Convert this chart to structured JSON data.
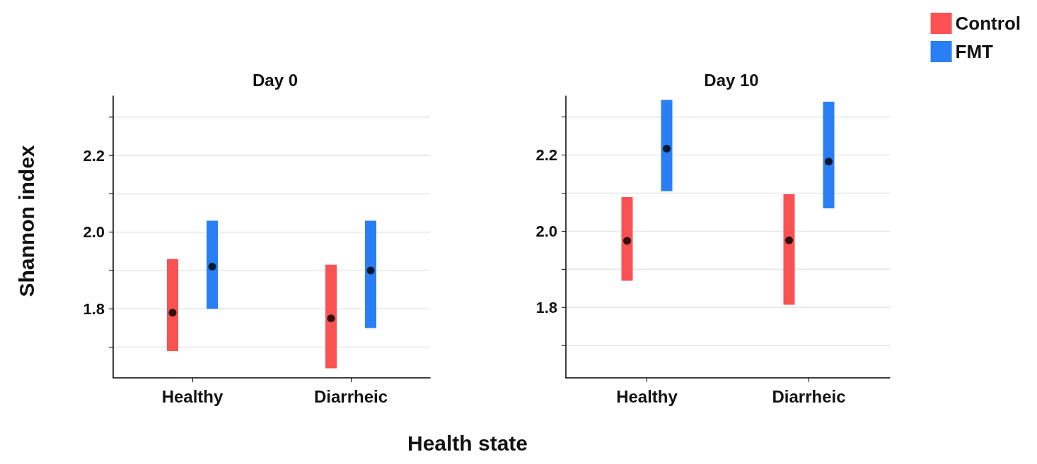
{
  "chart_data": [
    {
      "type": "bar",
      "title": "Day 0",
      "ylabel": "Shannon index",
      "xlabel": "Health state",
      "categories": [
        "Healthy",
        "Diarrheic"
      ],
      "ylim": [
        1.62,
        2.355
      ],
      "yticks": [
        {
          "value": 1.7,
          "label": null
        },
        {
          "value": 1.8,
          "label": "1.8"
        },
        {
          "value": 1.9,
          "label": null
        },
        {
          "value": 2,
          "label": "2.0"
        },
        {
          "value": 2.1,
          "label": null
        },
        {
          "value": 2.2,
          "label": "2.2"
        },
        {
          "value": 2.3,
          "label": null
        }
      ],
      "grid": "y",
      "series": [
        {
          "color": "#fa5252",
          "base": [
            1.69,
            1.645
          ],
          "values": [
            0.24,
            0.27
          ]
        },
        {
          "color": "#2a7ff7",
          "base": [
            1.8,
            1.75
          ],
          "values": [
            0.23,
            0.28
          ]
        },
        {
          "type": "scatter",
          "color": "#000000",
          "marker": "circle",
          "x": [
            "Healthy",
            "Diarrheic"
          ],
          "values": [
            1.79,
            1.775
          ]
        },
        {
          "type": "scatter",
          "color": "#000000",
          "marker": "circle",
          "x": [
            "Healthy",
            "Diarrheic"
          ],
          "values": [
            1.91,
            1.9
          ]
        }
      ]
    },
    {
      "type": "bar",
      "title": "Day 10",
      "categories": [
        "Healthy",
        "Diarrheic"
      ],
      "ylim": [
        1.615,
        2.355
      ],
      "yticks": [
        {
          "value": 1.7,
          "label": null
        },
        {
          "value": 1.8,
          "label": "1.8"
        },
        {
          "value": 1.9,
          "label": null
        },
        {
          "value": 2,
          "label": "2.0"
        },
        {
          "value": 2.1,
          "label": null
        },
        {
          "value": 2.2,
          "label": "2.2"
        },
        {
          "value": 2.3,
          "label": null
        }
      ],
      "grid": "y",
      "legend": "top right",
      "series": [
        {
          "name": "Control",
          "color": "#fa5252",
          "base": [
            1.87,
            1.807
          ],
          "values": [
            0.22,
            0.29
          ]
        },
        {
          "name": "FMT",
          "color": "#2a7ff7",
          "base": [
            2.105,
            2.06
          ],
          "values": [
            0.24,
            0.28
          ]
        },
        {
          "type": "scatter",
          "color": "#000000",
          "marker": "circle",
          "x": [
            "Healthy",
            "Diarrheic"
          ],
          "values": [
            1.975,
            1.976
          ]
        },
        {
          "type": "scatter",
          "color": "#000000",
          "marker": "circle",
          "x": [
            "Healthy",
            "Diarrheic"
          ],
          "values": [
            2.217,
            2.183
          ]
        }
      ]
    }
  ]
}
